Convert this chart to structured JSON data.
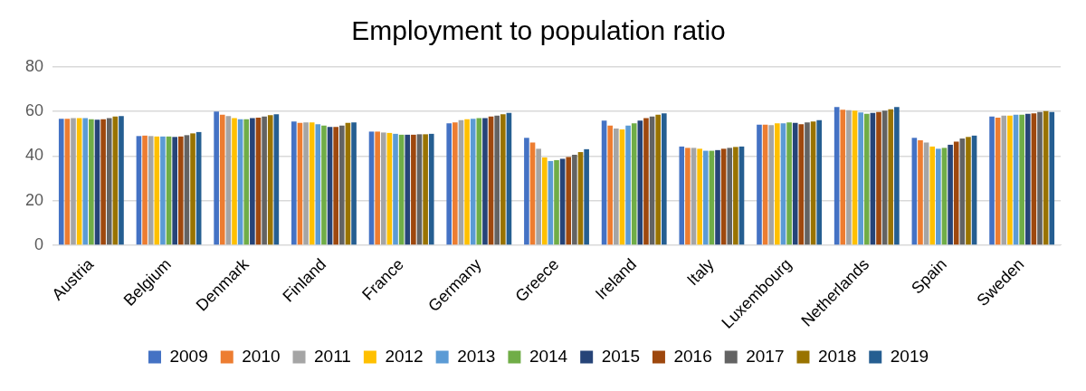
{
  "chart_data": {
    "type": "bar",
    "title": "Employment to population ratio",
    "categories": [
      "Austria",
      "Belgium",
      "Denmark",
      "Finland",
      "France",
      "Germany",
      "Greece",
      "Ireland",
      "Italy",
      "Luxembourg",
      "Netherlands",
      "Spain",
      "Sweden"
    ],
    "ylim": [
      0,
      80
    ],
    "yticks": [
      0,
      20,
      40,
      60,
      80
    ],
    "grid": "y",
    "legend": "bottom",
    "series": [
      {
        "name": "2009",
        "color": "#4472c4",
        "values": [
          56.7,
          49.0,
          60.0,
          55.5,
          51.0,
          54.7,
          48.2,
          55.9,
          44.3,
          54.1,
          62.0,
          48.2,
          57.8
        ]
      },
      {
        "name": "2010",
        "color": "#ed7d31",
        "values": [
          56.7,
          49.2,
          58.6,
          54.9,
          51.0,
          55.1,
          46.1,
          53.7,
          43.7,
          54.1,
          60.8,
          47.1,
          57.3
        ]
      },
      {
        "name": "2011",
        "color": "#a5a5a5",
        "values": [
          57.1,
          49.0,
          58.0,
          55.1,
          50.6,
          56.1,
          43.3,
          52.4,
          43.7,
          53.9,
          60.6,
          46.1,
          58.2
        ]
      },
      {
        "name": "2012",
        "color": "#ffc000",
        "values": [
          57.1,
          48.8,
          57.1,
          55.1,
          50.4,
          56.5,
          39.4,
          52.0,
          43.3,
          54.7,
          60.4,
          44.3,
          58.2
        ]
      },
      {
        "name": "2013",
        "color": "#5b9bd5",
        "values": [
          57.1,
          48.8,
          56.5,
          54.3,
          50.0,
          56.7,
          37.8,
          53.7,
          42.4,
          54.7,
          59.6,
          43.3,
          58.6
        ]
      },
      {
        "name": "2014",
        "color": "#70ad47",
        "values": [
          56.5,
          48.8,
          56.5,
          53.7,
          49.6,
          57.1,
          38.2,
          54.7,
          42.4,
          55.1,
          59.0,
          43.7,
          58.6
        ]
      },
      {
        "name": "2015",
        "color": "#264478",
        "values": [
          56.3,
          48.6,
          57.1,
          53.1,
          49.6,
          57.1,
          38.8,
          55.9,
          42.7,
          54.9,
          59.4,
          45.1,
          59.0
        ]
      },
      {
        "name": "2016",
        "color": "#9e480e",
        "values": [
          56.5,
          48.8,
          57.3,
          53.1,
          49.6,
          57.8,
          39.6,
          57.1,
          43.3,
          54.3,
          59.8,
          46.5,
          59.2
        ]
      },
      {
        "name": "2017",
        "color": "#636363",
        "values": [
          57.1,
          49.4,
          57.8,
          53.7,
          49.8,
          58.2,
          40.6,
          57.8,
          43.7,
          55.1,
          60.4,
          47.9,
          59.8
        ]
      },
      {
        "name": "2018",
        "color": "#997300",
        "values": [
          57.8,
          50.2,
          58.4,
          54.9,
          49.8,
          58.8,
          41.8,
          58.6,
          44.1,
          55.5,
          61.0,
          48.6,
          60.2
        ]
      },
      {
        "name": "2019",
        "color": "#255e91",
        "values": [
          58.0,
          50.8,
          58.8,
          55.1,
          50.0,
          59.4,
          43.1,
          59.2,
          44.3,
          56.1,
          62.0,
          49.2,
          59.8
        ]
      }
    ]
  }
}
